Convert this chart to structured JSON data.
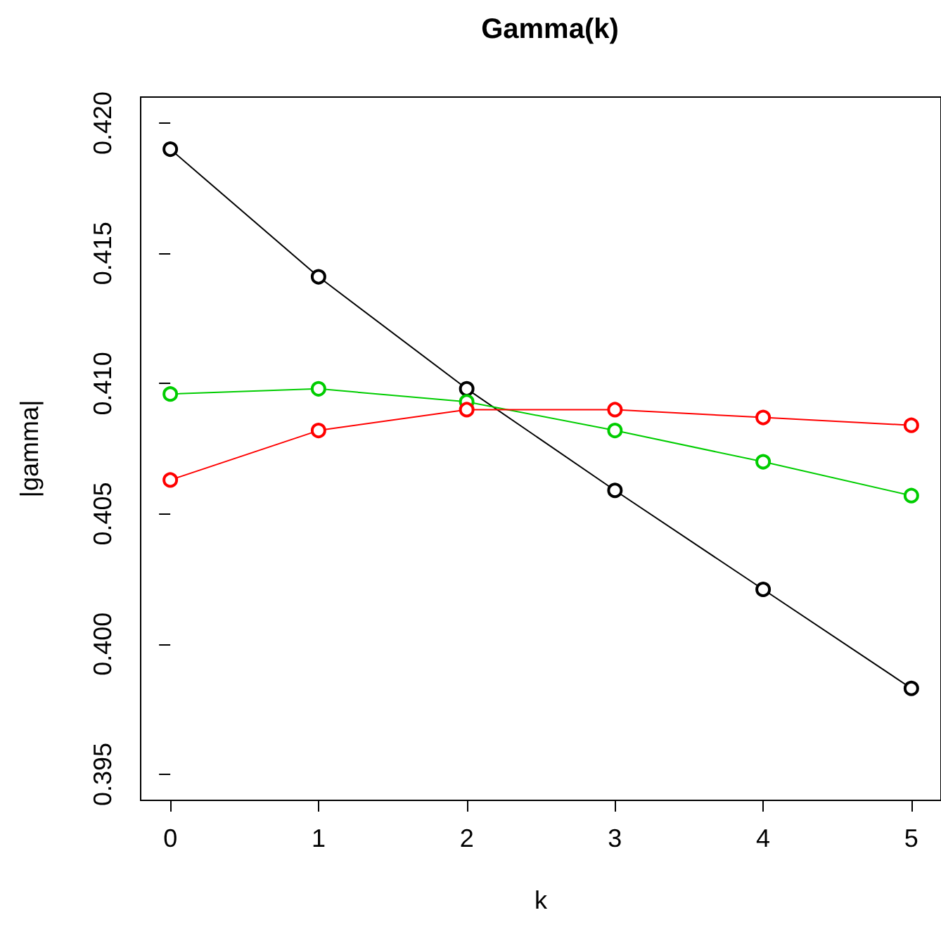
{
  "chart_data": {
    "type": "line",
    "title": "Gamma(k)",
    "xlabel": "k",
    "ylabel": "|gamma|",
    "x": [
      0,
      1,
      2,
      3,
      4,
      5
    ],
    "series": [
      {
        "color": "#000000",
        "values": [
          0.419,
          0.4141,
          0.4098,
          0.4059,
          0.4021,
          0.3983
        ]
      },
      {
        "color": "#00cd00",
        "values": [
          0.4096,
          0.4098,
          0.4093,
          0.4082,
          0.407,
          0.4057
        ]
      },
      {
        "color": "#ff0000",
        "values": [
          0.4063,
          0.4082,
          0.409,
          0.409,
          0.4087,
          0.4084
        ]
      }
    ],
    "xlim": [
      -0.2,
      5.2
    ],
    "ylim": [
      0.394,
      0.421
    ],
    "xticks": [
      0,
      1,
      2,
      3,
      4,
      5
    ],
    "yticks": [
      0.395,
      {
        "value": 0.4,
        "label": "0.400"
      },
      0.405,
      {
        "value": 0.41,
        "label": "0.410"
      },
      0.415,
      {
        "value": 0.42,
        "label": "0.420"
      }
    ],
    "marker": "circle",
    "line_style": "solid"
  }
}
